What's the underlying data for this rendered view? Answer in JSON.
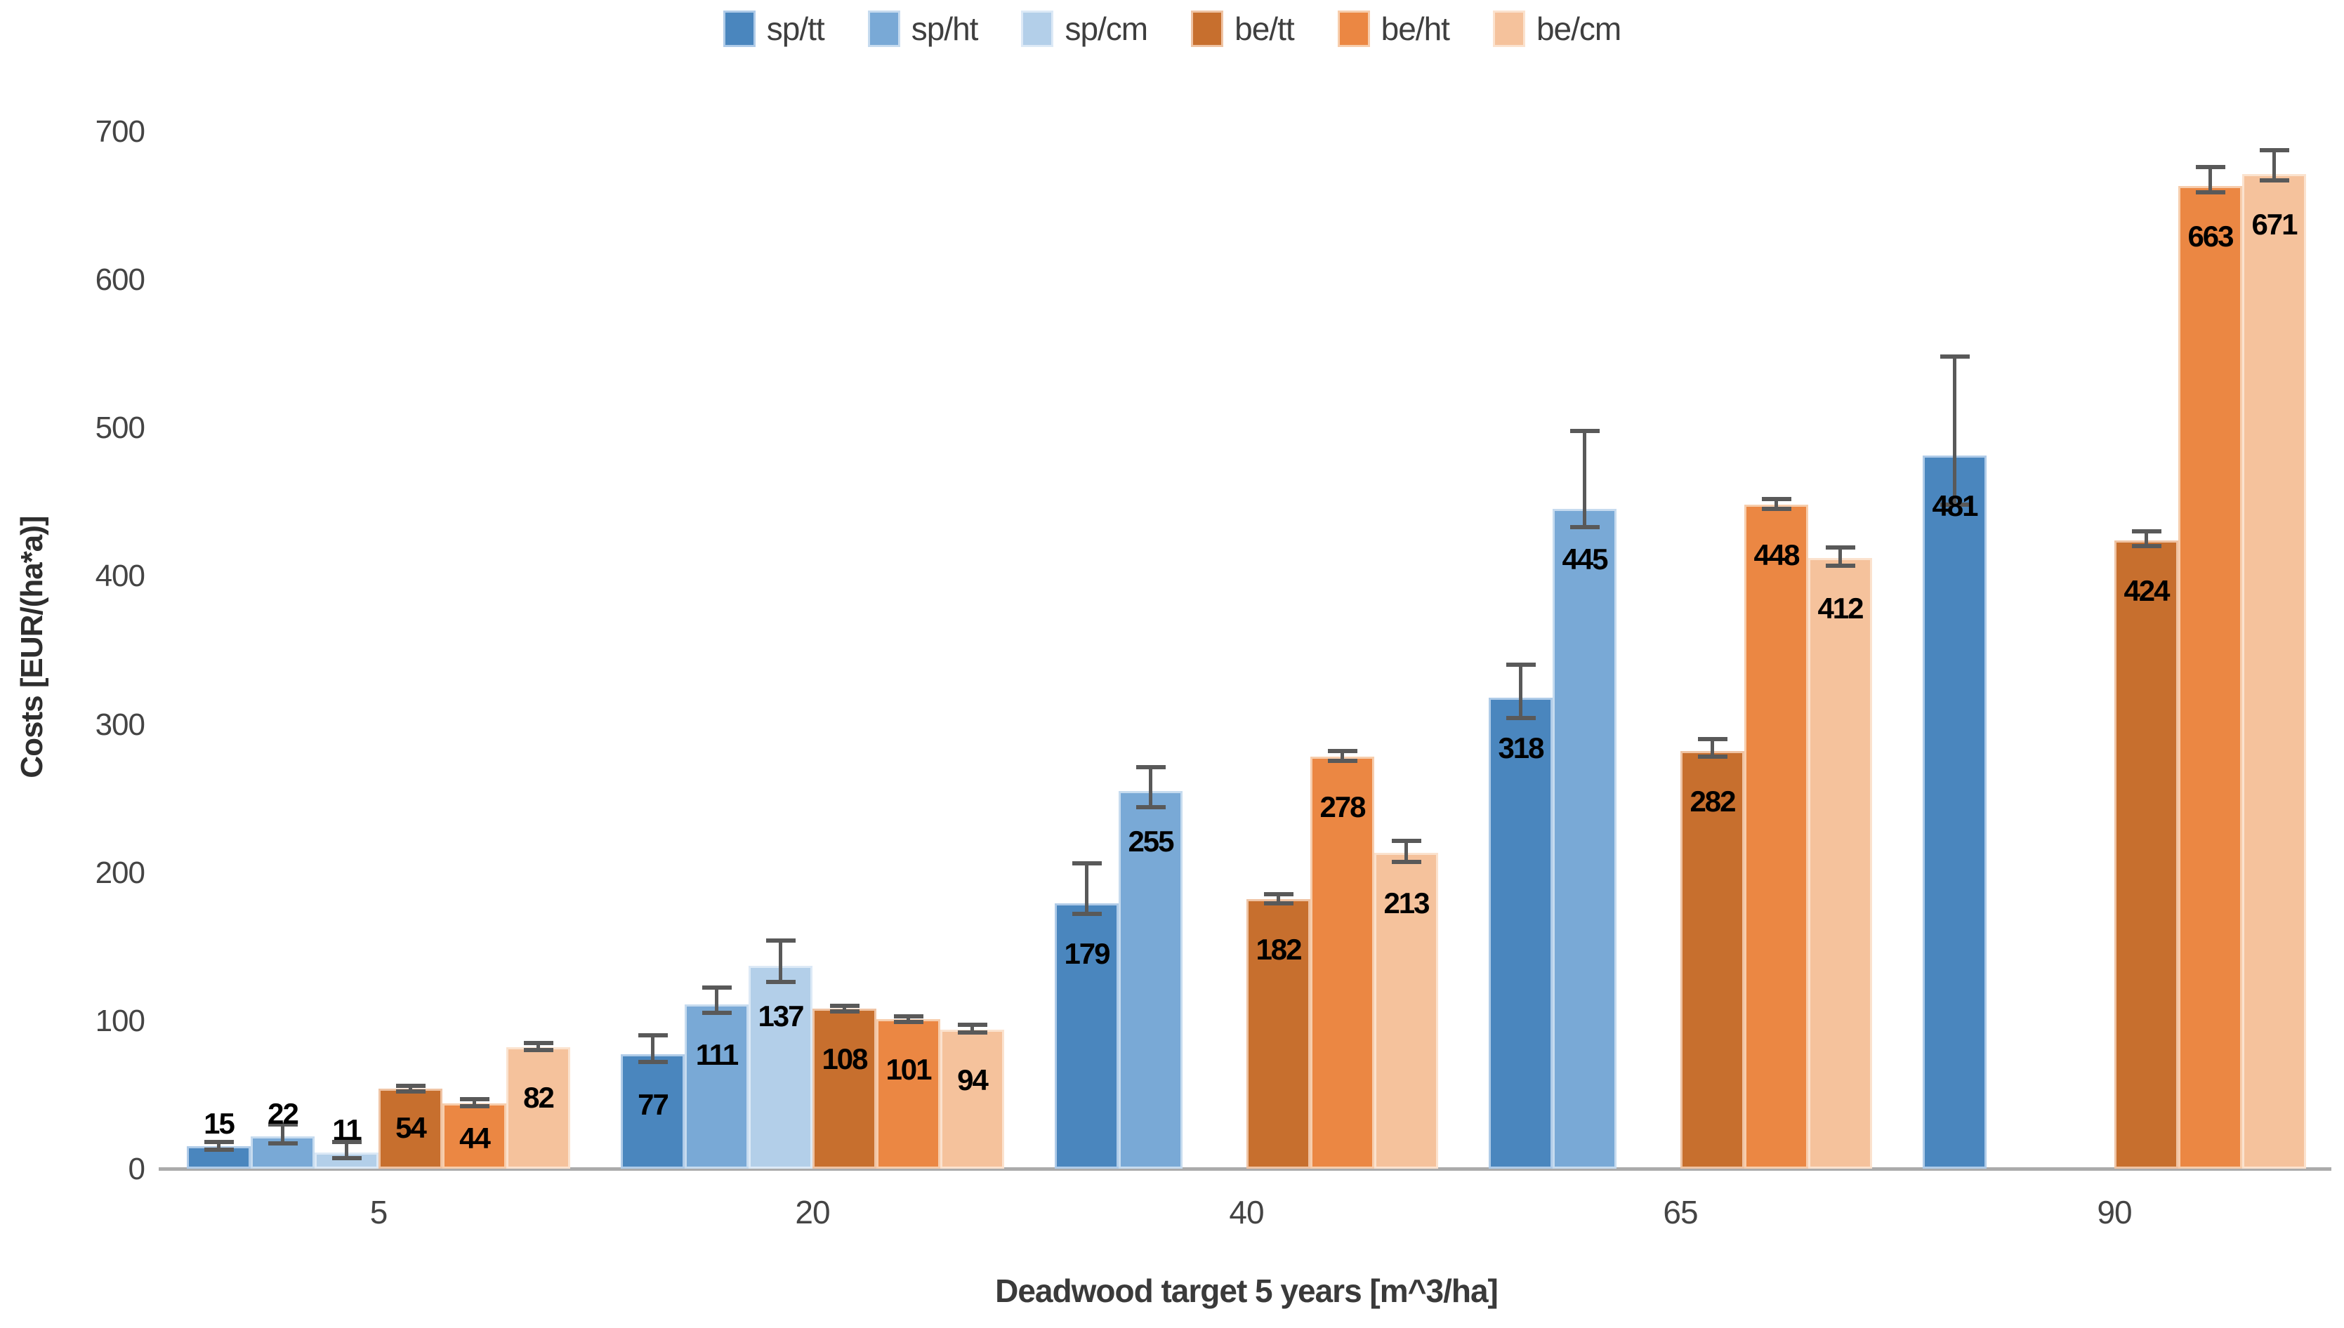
{
  "chart_data": {
    "type": "bar",
    "title": "",
    "xlabel": "Deadwood target 5 years [m^3/ha]",
    "ylabel": "Costs [EUR/(ha*a)]",
    "ylim": [
      0,
      700
    ],
    "yticks": [
      "0",
      "100",
      "200",
      "300",
      "400",
      "500",
      "600",
      "700"
    ],
    "categories": [
      "5",
      "20",
      "40",
      "65",
      "90"
    ],
    "grid": false,
    "legend_position": "top-center",
    "error_bars": true,
    "data_labels": "bold black, inside top of bar (above bar for values <= 25)",
    "series": [
      {
        "name": "sp/tt",
        "color": "#4A86BE",
        "border_color": "#AFCBE8",
        "values": [
          15,
          77,
          179,
          318,
          481
        ],
        "err_up": [
          3,
          13,
          27,
          22,
          67
        ],
        "err_down": [
          2,
          5,
          7,
          14,
          33
        ]
      },
      {
        "name": "sp/ht",
        "color": "#79A9D6",
        "border_color": "#C6DBEF",
        "values": [
          22,
          111,
          255,
          445,
          null
        ],
        "err_up": [
          8,
          11,
          16,
          53,
          null
        ],
        "err_down": [
          5,
          6,
          11,
          12,
          null
        ]
      },
      {
        "name": "sp/cm",
        "color": "#B3CFE9",
        "border_color": "#DCE9F6",
        "values": [
          11,
          137,
          null,
          null,
          null
        ],
        "err_up": [
          7,
          17,
          null,
          null,
          null
        ],
        "err_down": [
          4,
          11,
          null,
          null,
          null
        ]
      },
      {
        "name": "be/tt",
        "color": "#C76F2E",
        "border_color": "#EFC3A3",
        "values": [
          54,
          108,
          182,
          282,
          424
        ],
        "err_up": [
          2,
          2,
          3,
          8,
          6
        ],
        "err_down": [
          2,
          2,
          3,
          4,
          4
        ]
      },
      {
        "name": "be/ht",
        "color": "#EB8743",
        "border_color": "#F7CDAC",
        "values": [
          44,
          101,
          278,
          448,
          663
        ],
        "err_up": [
          3,
          2,
          4,
          4,
          13
        ],
        "err_down": [
          2,
          2,
          3,
          3,
          4
        ]
      },
      {
        "name": "be/cm",
        "color": "#F5C29C",
        "border_color": "#FBE2CE",
        "values": [
          82,
          94,
          213,
          412,
          671
        ],
        "err_up": [
          3,
          3,
          8,
          7,
          16
        ],
        "err_down": [
          2,
          2,
          6,
          5,
          4
        ]
      }
    ],
    "style_colors": {
      "error_bar": "#595959",
      "axis_line": "#ABABAB",
      "tick_text": "#444444",
      "legend_text": "#3F3F3F",
      "data_label_text": "#000000"
    }
  }
}
